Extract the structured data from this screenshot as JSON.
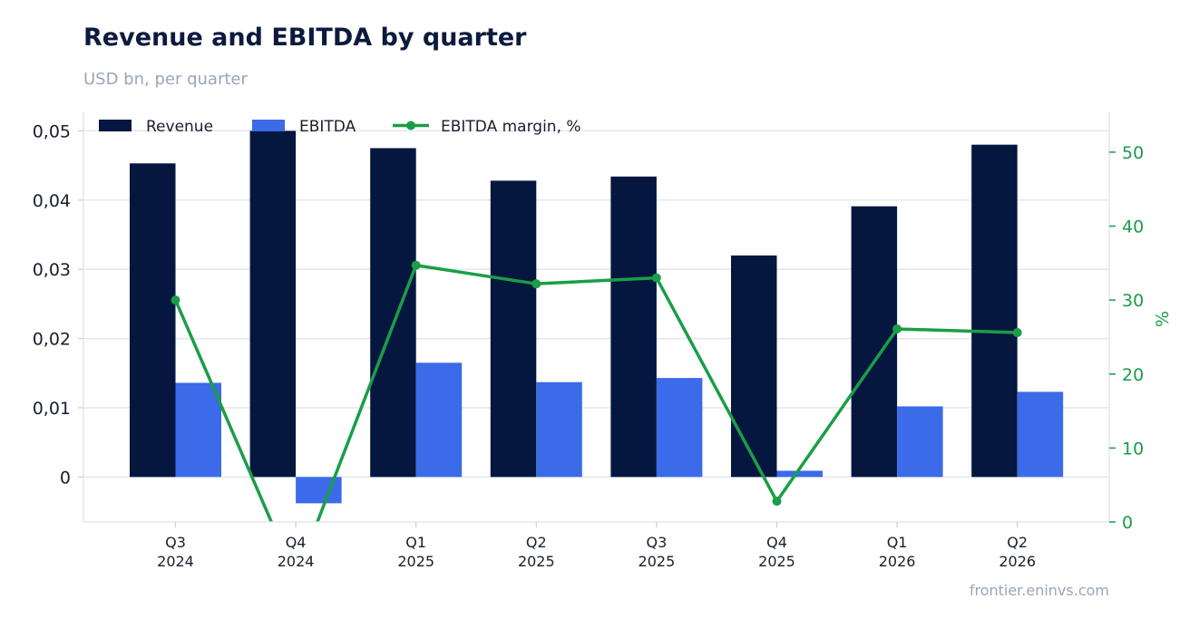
{
  "chart_data": {
    "type": "bar",
    "title": "Revenue and EBITDA by quarter",
    "subtitle": "USD bn, per quarter",
    "source": "frontier.eninvs.com",
    "categories": [
      [
        "Q3",
        "2024"
      ],
      [
        "Q4",
        "2024"
      ],
      [
        "Q1",
        "2025"
      ],
      [
        "Q2",
        "2025"
      ],
      [
        "Q3",
        "2025"
      ],
      [
        "Q4",
        "2025"
      ],
      [
        "Q1",
        "2026"
      ],
      [
        "Q2",
        "2026"
      ]
    ],
    "series": [
      {
        "name": "Revenue",
        "type": "bar",
        "axis": "left",
        "color": "#05163f",
        "values": [
          0.0453,
          0.05,
          0.0475,
          0.0428,
          0.0434,
          0.032,
          0.0391,
          0.048
        ]
      },
      {
        "name": "EBITDA",
        "type": "bar",
        "axis": "left",
        "color": "#3b6be8",
        "values": [
          0.0136,
          -0.0038,
          0.0165,
          0.0137,
          0.0143,
          0.0009,
          0.0102,
          0.0123
        ]
      },
      {
        "name": "EBITDA margin, %",
        "type": "line",
        "axis": "right",
        "color": "#1a9e47",
        "values": [
          30.0,
          -7.6,
          34.7,
          32.2,
          33.0,
          2.8,
          26.1,
          25.6
        ]
      }
    ],
    "left_axis": {
      "ylim": [
        -0.0065,
        0.0528
      ],
      "ticks": [
        0,
        0.01,
        0.02,
        0.03,
        0.04,
        0.05
      ],
      "tick_labels": [
        "0",
        "0,01",
        "0,02",
        "0,03",
        "0,04",
        "0,05"
      ]
    },
    "right_axis": {
      "label": "%",
      "ylim": [
        0,
        55.5
      ],
      "ticks": [
        0,
        10,
        20,
        30,
        40,
        50
      ],
      "tick_labels": [
        "0",
        "10",
        "20",
        "30",
        "40",
        "50"
      ]
    },
    "grid": true,
    "legend_position": "top-left"
  }
}
